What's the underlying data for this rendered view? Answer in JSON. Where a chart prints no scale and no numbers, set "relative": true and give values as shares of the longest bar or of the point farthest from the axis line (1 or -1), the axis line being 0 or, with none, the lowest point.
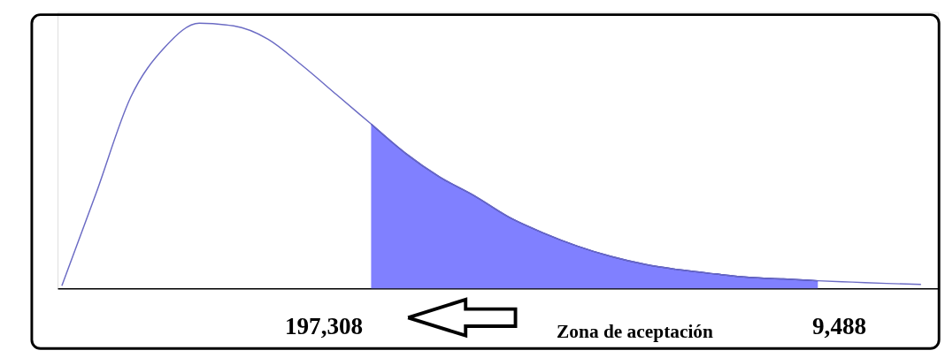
{
  "chart_data": {
    "type": "line",
    "relative": true,
    "categories": [
      null,
      null,
      null,
      null,
      null,
      null,
      null,
      null,
      null,
      null,
      null,
      null,
      null,
      null,
      null,
      null,
      null,
      null,
      null,
      null,
      null,
      null,
      null,
      null,
      null,
      null
    ],
    "series": [
      {
        "type": "line",
        "color": "#6b6bc4",
        "values": [
          0.01,
          0.36,
          0.72,
          0.91,
          1.0,
          0.99,
          0.94,
          0.84,
          0.73,
          0.62,
          0.51,
          0.42,
          0.35,
          0.27,
          0.21,
          0.16,
          0.12,
          0.09,
          0.07,
          0.055,
          0.042,
          0.036,
          0.029,
          0.024,
          0.019,
          0.015
        ]
      },
      {
        "type": "area",
        "color": "#8080ff",
        "values": [
          null,
          null,
          null,
          null,
          null,
          null,
          null,
          null,
          null,
          0.62,
          0.51,
          0.42,
          0.35,
          0.27,
          0.21,
          0.16,
          0.12,
          0.09,
          0.07,
          0.055,
          0.042,
          0.036,
          0.029,
          null,
          null,
          null
        ]
      }
    ],
    "annotations": [
      "197,308",
      "Zona de aceptación",
      "9,488"
    ]
  }
}
